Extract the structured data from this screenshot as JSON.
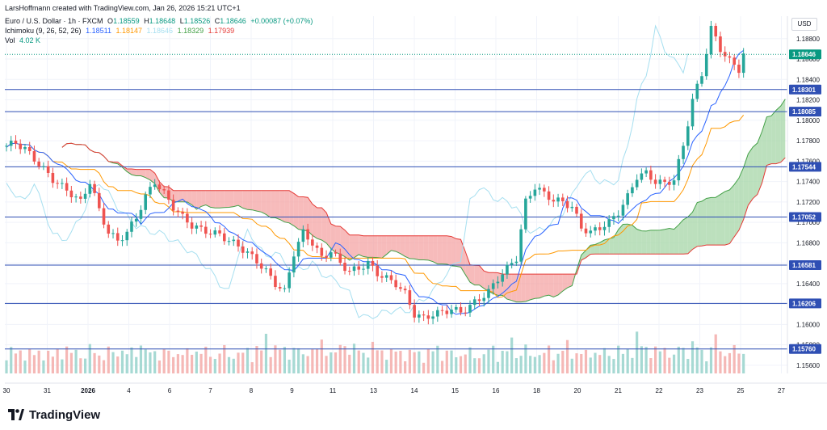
{
  "header": {
    "creator_line": "LarsHoffmann created with TradingView.com, Jan 26, 2026 15:21 UTC+1",
    "symbol": "Euro / U.S. Dollar · 1h · FXCM",
    "ohlc": {
      "open_label": "O",
      "open": "1.18559",
      "high_label": "H",
      "high": "1.18648",
      "low_label": "L",
      "low": "1.18526",
      "close_label": "C",
      "close": "1.18646",
      "change": "+0.00087 (+0.07%)"
    },
    "ichimoku": {
      "name": "Ichimoku (9, 26, 52, 26)",
      "conversion": "1.18511",
      "base": "1.18147",
      "lagging": "1.18646",
      "lead_a": "1.18329",
      "lead_b": "1.17939"
    },
    "volume": {
      "label": "Vol",
      "value": "4.02 K"
    }
  },
  "currency": "USD",
  "brand": {
    "name": "TradingView"
  },
  "colors": {
    "up": "#26a69a",
    "down": "#ef5350",
    "conversion": "#2962ff",
    "base": "#ff9800",
    "lagging": "#a6dff0",
    "lead_a": "#43a047",
    "lead_b": "#e53935",
    "cloud_bull": "#a5d6a7",
    "cloud_bear": "#f4a4a4",
    "level": "#2f4fb4",
    "price_tag": "#089981"
  },
  "chart_data": {
    "type": "candlestick",
    "timeframe": "1h",
    "y_range": [
      1.1552,
      1.1902
    ],
    "x_tick_labels": [
      "30",
      "31",
      "2026",
      "4",
      "6",
      "7",
      "8",
      "9",
      "11",
      "13",
      "14",
      "15",
      "16",
      "18",
      "20",
      "21",
      "22",
      "23",
      "25",
      "27"
    ],
    "y_tick_labels": [
      "1.15600",
      "1.15800",
      "1.16000",
      "1.16200",
      "1.16400",
      "1.16600",
      "1.16800",
      "1.17000",
      "1.17200",
      "1.17400",
      "1.17600",
      "1.17800",
      "1.18000",
      "1.18200",
      "1.18400",
      "1.18600",
      "1.18800"
    ],
    "horizontal_levels": [
      "1.18301",
      "1.18085",
      "1.17544",
      "1.17052",
      "1.16581",
      "1.16206",
      "1.15760"
    ],
    "last_price": "1.18646",
    "series": [
      {
        "name": "Price",
        "points": [
          [
            0,
            1.1775
          ],
          [
            2,
            1.1778
          ],
          [
            4,
            1.1772
          ],
          [
            6,
            1.1762
          ],
          [
            8,
            1.1752
          ],
          [
            10,
            1.1742
          ],
          [
            12,
            1.1735
          ],
          [
            14,
            1.1728
          ],
          [
            16,
            1.172
          ],
          [
            18,
            1.174
          ],
          [
            20,
            1.1712
          ],
          [
            22,
            1.169
          ],
          [
            24,
            1.1682
          ],
          [
            26,
            1.169
          ],
          [
            28,
            1.1705
          ],
          [
            30,
            1.1725
          ],
          [
            32,
            1.174
          ],
          [
            34,
            1.1728
          ],
          [
            36,
            1.1715
          ],
          [
            38,
            1.1705
          ],
          [
            40,
            1.1697
          ],
          [
            42,
            1.1693
          ],
          [
            44,
            1.169
          ],
          [
            46,
            1.1688
          ],
          [
            48,
            1.1682
          ],
          [
            50,
            1.1677
          ],
          [
            52,
            1.167
          ],
          [
            54,
            1.1662
          ],
          [
            56,
            1.1652
          ],
          [
            58,
            1.164
          ],
          [
            60,
            1.1632
          ],
          [
            62,
            1.167
          ],
          [
            64,
            1.169
          ],
          [
            66,
            1.168
          ],
          [
            68,
            1.1665
          ],
          [
            70,
            1.1672
          ],
          [
            72,
            1.166
          ],
          [
            74,
            1.1652
          ],
          [
            76,
            1.1655
          ],
          [
            78,
            1.166
          ],
          [
            80,
            1.165
          ],
          [
            82,
            1.1645
          ],
          [
            84,
            1.164
          ],
          [
            86,
            1.163
          ],
          [
            88,
            1.161
          ],
          [
            90,
            1.1606
          ],
          [
            92,
            1.161
          ],
          [
            94,
            1.1612
          ],
          [
            96,
            1.1615
          ],
          [
            98,
            1.1612
          ],
          [
            100,
            1.1618
          ],
          [
            102,
            1.1625
          ],
          [
            104,
            1.1632
          ],
          [
            106,
            1.1645
          ],
          [
            108,
            1.1655
          ],
          [
            110,
            1.1665
          ],
          [
            112,
            1.172
          ],
          [
            114,
            1.1735
          ],
          [
            116,
            1.1728
          ],
          [
            118,
            1.1722
          ],
          [
            120,
            1.172
          ],
          [
            122,
            1.1715
          ],
          [
            124,
            1.1695
          ],
          [
            126,
            1.169
          ],
          [
            128,
            1.1695
          ],
          [
            130,
            1.17
          ],
          [
            132,
            1.171
          ],
          [
            134,
            1.1725
          ],
          [
            136,
            1.1745
          ],
          [
            138,
            1.1748
          ],
          [
            140,
            1.174
          ],
          [
            142,
            1.1738
          ],
          [
            144,
            1.1742
          ],
          [
            146,
            1.1775
          ],
          [
            148,
            1.182
          ],
          [
            150,
            1.1845
          ],
          [
            152,
            1.189
          ],
          [
            154,
            1.187
          ],
          [
            156,
            1.1858
          ],
          [
            158,
            1.185
          ],
          [
            159,
            1.1865
          ]
        ]
      },
      {
        "name": "Volume",
        "values": [
          3.1,
          4.0,
          2.6,
          3.4,
          2.9,
          3.8,
          2.4,
          3.3,
          2.8,
          3.6,
          2.2,
          3.5,
          2.9,
          4.4,
          2.7,
          3.3,
          3.0,
          2.5,
          3.9,
          2.8,
          3.4,
          2.3,
          3.6,
          2.9,
          3.1,
          4.1,
          2.6,
          3.5,
          2.9,
          5.2,
          3.3,
          2.8,
          3.8,
          2.5,
          3.4,
          3.0,
          2.7,
          3.9,
          2.6,
          3.3,
          3.0,
          4.6,
          2.8,
          3.5,
          2.6,
          3.2,
          2.9,
          3.7,
          2.5,
          3.4,
          3.1,
          2.7,
          3.8,
          2.6,
          4.2,
          3.0,
          5.8,
          3.6,
          4.4,
          3.1,
          3.8,
          2.9,
          4.1,
          3.3,
          2.7,
          3.5,
          4.0,
          3.2,
          4.7,
          3.4,
          3.6,
          2.8,
          3.9,
          5.1,
          3.3,
          4.0,
          3.1,
          3.7,
          2.9,
          4.3
        ]
      }
    ]
  }
}
